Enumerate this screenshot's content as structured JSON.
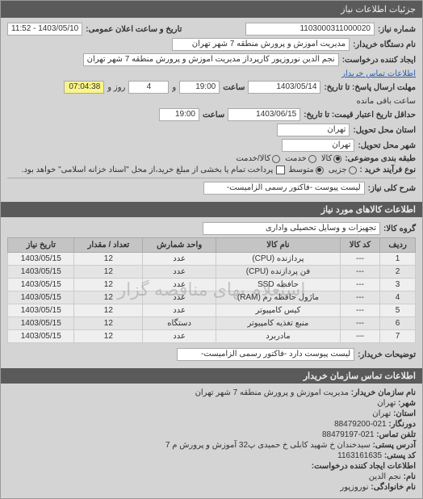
{
  "window": {
    "title": "جزئیات اطلاعات نیاز"
  },
  "form": {
    "req_no_label": "شماره نیاز:",
    "req_no": "1103000311000020",
    "pub_dt_label": "تاریخ و ساعت اعلان عمومی:",
    "pub_dt": "1403/05/10 - 11:52",
    "buyer_dev_label": "نام دستگاه خریدار:",
    "buyer_dev": "مدیریت اموزش و پرورش منطقه 7 شهر تهران",
    "creator_label": "ایجاد کننده درخواست:",
    "creator": "نجم الدین نوروزپور کارپرداز مدیریت اموزش و پرورش منطقه 7 شهر تهران",
    "contact_link": "اطلاعات تماس خریدار",
    "deadline_send_label": "مهلت ارسال پاسخ: تا تاریخ:",
    "deadline_send_date": "1403/05/14",
    "hour_label": "ساعت",
    "deadline_send_time": "19:00",
    "and_label": "و",
    "day_label": "روز و",
    "days_left": "4",
    "remain_label": "ساعت باقی مانده",
    "remain_time": "07:04:38",
    "valid_min_label": "حداقل تاریخ اعتبار قیمت: تا تاریخ:",
    "valid_min_date": "1403/06/15",
    "valid_min_time": "19:00",
    "province_label": "استان محل تحویل:",
    "province": "تهران",
    "city_label": "شهر محل تحویل:",
    "city": "تهران",
    "pack_label": "طبقه بندی موضوعی:",
    "pack_opts": [
      "کالا",
      "خدمت",
      "کالا/خدمت"
    ],
    "pack_selected": 0,
    "size_label": "نوع فرآیند خرید :",
    "size_opts": [
      "جزیی",
      "متوسط"
    ],
    "size_selected": 1,
    "pay_note": "پرداخت تمام یا بخشی از مبلغ خرید،از محل \"اسناد خزانه اسلامی\" خواهد بود.",
    "desc_label": "شرح کلی نیاز:",
    "desc": "لیست پیوست -فاکتور رسمی الزامیست-"
  },
  "items_header": "اطلاعات کالاهای مورد نیاز",
  "group_label": "گروه کالا:",
  "group_value": "تجهیزات و وسایل تحصیلی واداری",
  "table": {
    "columns": [
      "ردیف",
      "کد کالا",
      "نام کالا",
      "واحد شمارش",
      "تعداد / مقدار",
      "تاریخ نیاز"
    ],
    "rows": [
      [
        "1",
        "---",
        "پردازنده (CPU)",
        "عدد",
        "12",
        "1403/05/15"
      ],
      [
        "2",
        "---",
        "فن پردازنده (CPU)",
        "عدد",
        "12",
        "1403/05/15"
      ],
      [
        "3",
        "---",
        "حافظه SSD",
        "عدد",
        "12",
        "1403/05/15"
      ],
      [
        "4",
        "---",
        "ماژول حافظه رم (RAM)",
        "عدد",
        "12",
        "1403/05/15"
      ],
      [
        "5",
        "---",
        "کیس کامپیوتر",
        "عدد",
        "12",
        "1403/05/15"
      ],
      [
        "6",
        "---",
        "منبع تغذیه کامپیوتر",
        "دستگاه",
        "12",
        "1403/05/15"
      ],
      [
        "7",
        "---",
        "مادربرد",
        "عدد",
        "12",
        "1403/05/15"
      ]
    ],
    "watermark": "استعلام بهای مناقصه گزار"
  },
  "buyer_notes_label": "توضیحات خریدار:",
  "buyer_notes": "لیست پیوست دارد -فاکتور رسمی الزامیست-",
  "contact_header": "اطلاعات تماس سازمان خریدار",
  "contact": {
    "org_label": "نام سازمان خریدار:",
    "org": "مدیریت اموزش و پرورش منطقه 7 شهر تهران",
    "town_label": "شهر:",
    "town": "تهران",
    "province_label": "استان:",
    "province": "تهران",
    "fax_label": "دورنگار:",
    "fax": "021-88479200",
    "phone_label": "تلفن تماس:",
    "phone": "021-88479197",
    "addr_label": "آدرس پستی:",
    "addr": "سیدخندان خ شهید کابلی خ حمیدی پ32 آموزش و پرورش م 7",
    "postal_label": "کد پستی:",
    "postal": "1163161635",
    "req_creator_header": "اطلاعات ایجاد کننده درخواست:",
    "name_label": "نام:",
    "name": "نجم الدین",
    "lname_label": "نام خانوادگی:",
    "lname": "نوروزپور"
  }
}
